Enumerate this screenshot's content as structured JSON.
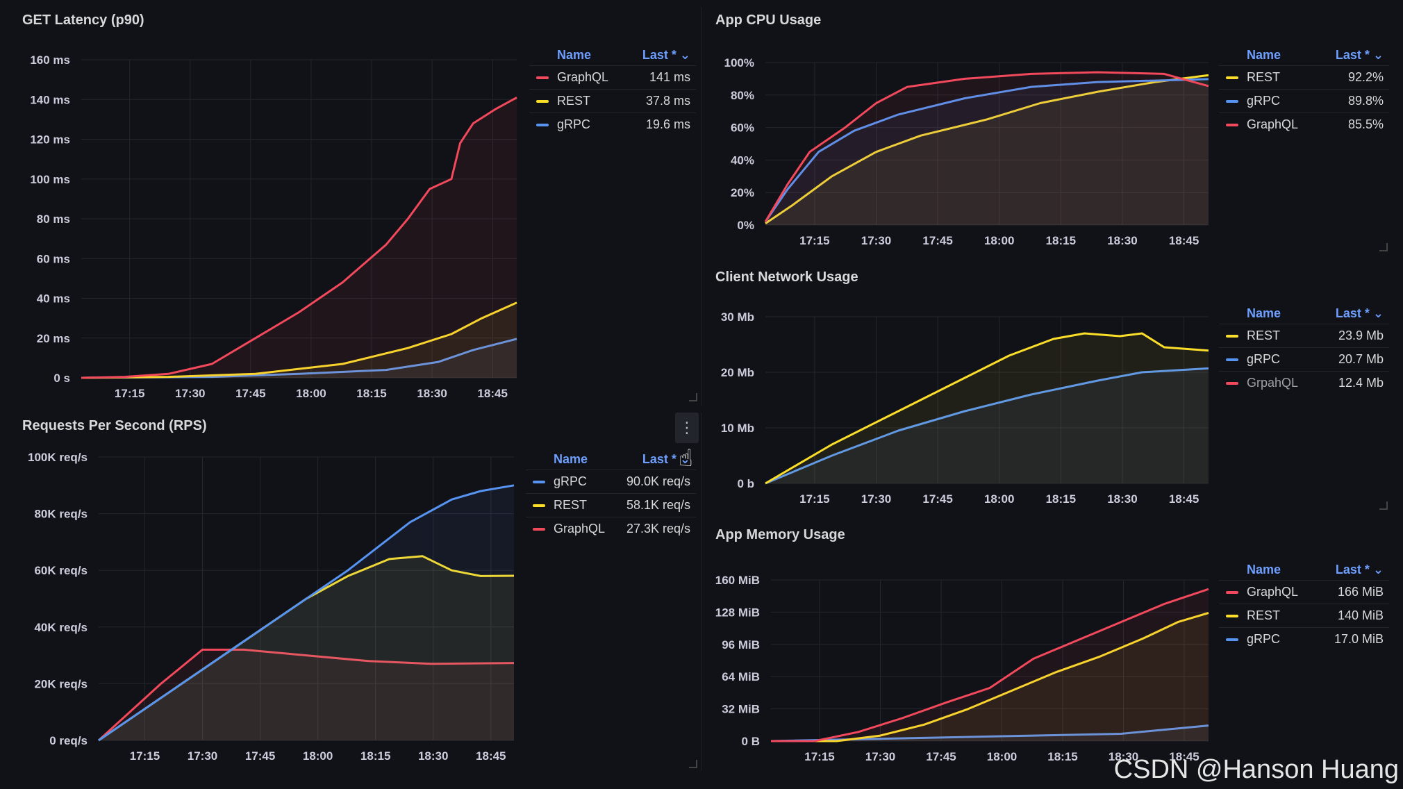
{
  "watermark": "CSDN @Hanson Huang",
  "panels": {
    "latency": {
      "title": "GET Latency (p90)",
      "legend": {
        "name_hdr": "Name",
        "last_hdr": "Last * ⌄",
        "rows": [
          {
            "name": "GraphQL",
            "value": "141 ms"
          },
          {
            "name": "REST",
            "value": "37.8 ms"
          },
          {
            "name": "gRPC",
            "value": "19.6 ms"
          }
        ]
      }
    },
    "rps": {
      "title": "Requests Per Second (RPS)",
      "menu_icon": "⋮",
      "legend": {
        "name_hdr": "Name",
        "last_hdr": "Last * ⌄",
        "rows": [
          {
            "name": "gRPC",
            "value": "90.0K req/s"
          },
          {
            "name": "REST",
            "value": "58.1K req/s"
          },
          {
            "name": "GraphQL",
            "value": "27.3K req/s"
          }
        ]
      }
    },
    "cpu": {
      "title": "App CPU Usage",
      "legend": {
        "name_hdr": "Name",
        "last_hdr": "Last * ⌄",
        "rows": [
          {
            "name": "REST",
            "value": "92.2%"
          },
          {
            "name": "gRPC",
            "value": "89.8%"
          },
          {
            "name": "GraphQL",
            "value": "85.5%"
          }
        ]
      }
    },
    "network": {
      "title": "Client Network Usage",
      "legend": {
        "name_hdr": "Name",
        "last_hdr": "Last * ⌄",
        "rows": [
          {
            "name": "REST",
            "value": "23.9 Mb"
          },
          {
            "name": "gRPC",
            "value": "20.7 Mb"
          },
          {
            "name": "GrpahQL",
            "value": "12.4 Mb"
          }
        ]
      }
    },
    "memory": {
      "title": "App Memory Usage",
      "legend": {
        "name_hdr": "Name",
        "last_hdr": "Last * ⌄",
        "rows": [
          {
            "name": "GraphQL",
            "value": "166 MiB"
          },
          {
            "name": "REST",
            "value": "140 MiB"
          },
          {
            "name": "gRPC",
            "value": "17.0 MiB"
          }
        ]
      }
    }
  },
  "colors": {
    "GraphQL": "#f2495c",
    "REST": "#fade2a",
    "gRPC": "#5794f2",
    "grid": "#24262d",
    "axis": "#ccccdc"
  },
  "chart_data": [
    {
      "id": "latency",
      "type": "line",
      "x": [
        "17:15",
        "17:30",
        "17:45",
        "18:00",
        "18:15",
        "18:30",
        "18:45"
      ],
      "y_ticks": [
        "0 s",
        "20 ms",
        "40 ms",
        "60 ms",
        "80 ms",
        "100 ms",
        "120 ms",
        "140 ms",
        "160 ms"
      ],
      "ylim": [
        0,
        160
      ],
      "series": [
        {
          "name": "GraphQL",
          "color": "#f2495c",
          "points": [
            [
              0,
              0
            ],
            [
              0.1,
              0.5
            ],
            [
              0.2,
              2
            ],
            [
              0.3,
              7
            ],
            [
              0.4,
              20
            ],
            [
              0.5,
              33
            ],
            [
              0.6,
              48
            ],
            [
              0.7,
              67
            ],
            [
              0.75,
              80
            ],
            [
              0.8,
              95
            ],
            [
              0.85,
              100
            ],
            [
              0.87,
              118
            ],
            [
              0.9,
              128
            ],
            [
              0.95,
              135
            ],
            [
              1,
              141
            ]
          ]
        },
        {
          "name": "REST",
          "color": "#fade2a",
          "points": [
            [
              0,
              0
            ],
            [
              0.2,
              0.5
            ],
            [
              0.4,
              2
            ],
            [
              0.6,
              7
            ],
            [
              0.75,
              15
            ],
            [
              0.85,
              22
            ],
            [
              0.92,
              30
            ],
            [
              1,
              37.8
            ]
          ]
        },
        {
          "name": "gRPC",
          "color": "#5794f2",
          "points": [
            [
              0,
              0
            ],
            [
              0.3,
              0.5
            ],
            [
              0.5,
              2
            ],
            [
              0.7,
              4
            ],
            [
              0.82,
              8
            ],
            [
              0.9,
              14
            ],
            [
              1,
              19.6
            ]
          ]
        }
      ]
    },
    {
      "id": "rps",
      "type": "line",
      "x": [
        "17:15",
        "17:30",
        "17:45",
        "18:00",
        "18:15",
        "18:30",
        "18:45"
      ],
      "y_ticks": [
        "0 req/s",
        "20K req/s",
        "40K req/s",
        "60K req/s",
        "80K req/s",
        "100K req/s"
      ],
      "ylim": [
        0,
        100000
      ],
      "series": [
        {
          "name": "gRPC",
          "color": "#5794f2",
          "points": [
            [
              0,
              0
            ],
            [
              0.2,
              20000
            ],
            [
              0.4,
              40000
            ],
            [
              0.6,
              60000
            ],
            [
              0.75,
              77000
            ],
            [
              0.85,
              85000
            ],
            [
              0.92,
              88000
            ],
            [
              1,
              90000
            ]
          ]
        },
        {
          "name": "REST",
          "color": "#fade2a",
          "points": [
            [
              0,
              0
            ],
            [
              0.2,
              20000
            ],
            [
              0.4,
              40000
            ],
            [
              0.5,
              50000
            ],
            [
              0.6,
              58000
            ],
            [
              0.7,
              64000
            ],
            [
              0.78,
              65000
            ],
            [
              0.85,
              60000
            ],
            [
              0.92,
              58000
            ],
            [
              1,
              58100
            ]
          ]
        },
        {
          "name": "GraphQL",
          "color": "#f2495c",
          "points": [
            [
              0,
              0
            ],
            [
              0.15,
              20000
            ],
            [
              0.25,
              32000
            ],
            [
              0.35,
              32000
            ],
            [
              0.5,
              30000
            ],
            [
              0.65,
              28000
            ],
            [
              0.8,
              27000
            ],
            [
              1,
              27300
            ]
          ]
        }
      ]
    },
    {
      "id": "cpu",
      "type": "line",
      "x": [
        "17:15",
        "17:30",
        "17:45",
        "18:00",
        "18:15",
        "18:30",
        "18:45"
      ],
      "y_ticks": [
        "0%",
        "20%",
        "40%",
        "60%",
        "80%",
        "100%"
      ],
      "ylim": [
        0,
        100
      ],
      "series": [
        {
          "name": "GraphQL",
          "color": "#f2495c",
          "points": [
            [
              0,
              2
            ],
            [
              0.05,
              25
            ],
            [
              0.1,
              45
            ],
            [
              0.18,
              60
            ],
            [
              0.25,
              75
            ],
            [
              0.32,
              85
            ],
            [
              0.45,
              90
            ],
            [
              0.6,
              93
            ],
            [
              0.75,
              94
            ],
            [
              0.9,
              93
            ],
            [
              1,
              85.5
            ]
          ]
        },
        {
          "name": "gRPC",
          "color": "#5794f2",
          "points": [
            [
              0,
              2
            ],
            [
              0.05,
              22
            ],
            [
              0.12,
              45
            ],
            [
              0.2,
              58
            ],
            [
              0.3,
              68
            ],
            [
              0.45,
              78
            ],
            [
              0.6,
              85
            ],
            [
              0.75,
              88
            ],
            [
              0.9,
              89
            ],
            [
              1,
              89.8
            ]
          ]
        },
        {
          "name": "REST",
          "color": "#fade2a",
          "points": [
            [
              0,
              1
            ],
            [
              0.06,
              12
            ],
            [
              0.15,
              30
            ],
            [
              0.25,
              45
            ],
            [
              0.35,
              55
            ],
            [
              0.5,
              65
            ],
            [
              0.62,
              75
            ],
            [
              0.75,
              82
            ],
            [
              0.88,
              88
            ],
            [
              1,
              92.2
            ]
          ]
        }
      ]
    },
    {
      "id": "network",
      "type": "line",
      "x": [
        "17:15",
        "17:30",
        "17:45",
        "18:00",
        "18:15",
        "18:30",
        "18:45"
      ],
      "y_ticks": [
        "0 b",
        "10 Mb",
        "20 Mb",
        "30 Mb"
      ],
      "ylim": [
        0,
        30
      ],
      "series": [
        {
          "name": "REST",
          "color": "#fade2a",
          "points": [
            [
              0,
              0
            ],
            [
              0.15,
              7
            ],
            [
              0.3,
              13
            ],
            [
              0.45,
              19
            ],
            [
              0.55,
              23
            ],
            [
              0.65,
              26
            ],
            [
              0.72,
              27
            ],
            [
              0.8,
              26.5
            ],
            [
              0.85,
              27
            ],
            [
              0.9,
              24.5
            ],
            [
              1,
              23.9
            ]
          ]
        },
        {
          "name": "gRPC",
          "color": "#5794f2",
          "points": [
            [
              0,
              0
            ],
            [
              0.15,
              5
            ],
            [
              0.3,
              9.5
            ],
            [
              0.45,
              13
            ],
            [
              0.6,
              16
            ],
            [
              0.75,
              18.5
            ],
            [
              0.85,
              20
            ],
            [
              1,
              20.7
            ]
          ]
        }
      ]
    },
    {
      "id": "memory",
      "type": "line",
      "x": [
        "17:15",
        "17:30",
        "17:45",
        "18:00",
        "18:15",
        "18:30",
        "18:45"
      ],
      "y_ticks": [
        "0 B",
        "32 MiB",
        "64 MiB",
        "96 MiB",
        "128 MiB",
        "160 MiB"
      ],
      "ylim": [
        0,
        176
      ],
      "series": [
        {
          "name": "GraphQL",
          "color": "#f2495c",
          "points": [
            [
              0,
              0
            ],
            [
              0.1,
              0
            ],
            [
              0.2,
              10
            ],
            [
              0.3,
              25
            ],
            [
              0.4,
              42
            ],
            [
              0.5,
              58
            ],
            [
              0.6,
              90
            ],
            [
              0.7,
              110
            ],
            [
              0.8,
              130
            ],
            [
              0.9,
              150
            ],
            [
              1,
              166
            ]
          ]
        },
        {
          "name": "REST",
          "color": "#fade2a",
          "points": [
            [
              0,
              0
            ],
            [
              0.15,
              0
            ],
            [
              0.25,
              6
            ],
            [
              0.35,
              18
            ],
            [
              0.45,
              35
            ],
            [
              0.55,
              55
            ],
            [
              0.65,
              75
            ],
            [
              0.75,
              92
            ],
            [
              0.85,
              112
            ],
            [
              0.93,
              130
            ],
            [
              1,
              140
            ]
          ]
        },
        {
          "name": "gRPC",
          "color": "#5794f2",
          "points": [
            [
              0,
              0
            ],
            [
              0.5,
              5
            ],
            [
              0.8,
              8
            ],
            [
              1,
              17
            ]
          ]
        }
      ]
    }
  ]
}
